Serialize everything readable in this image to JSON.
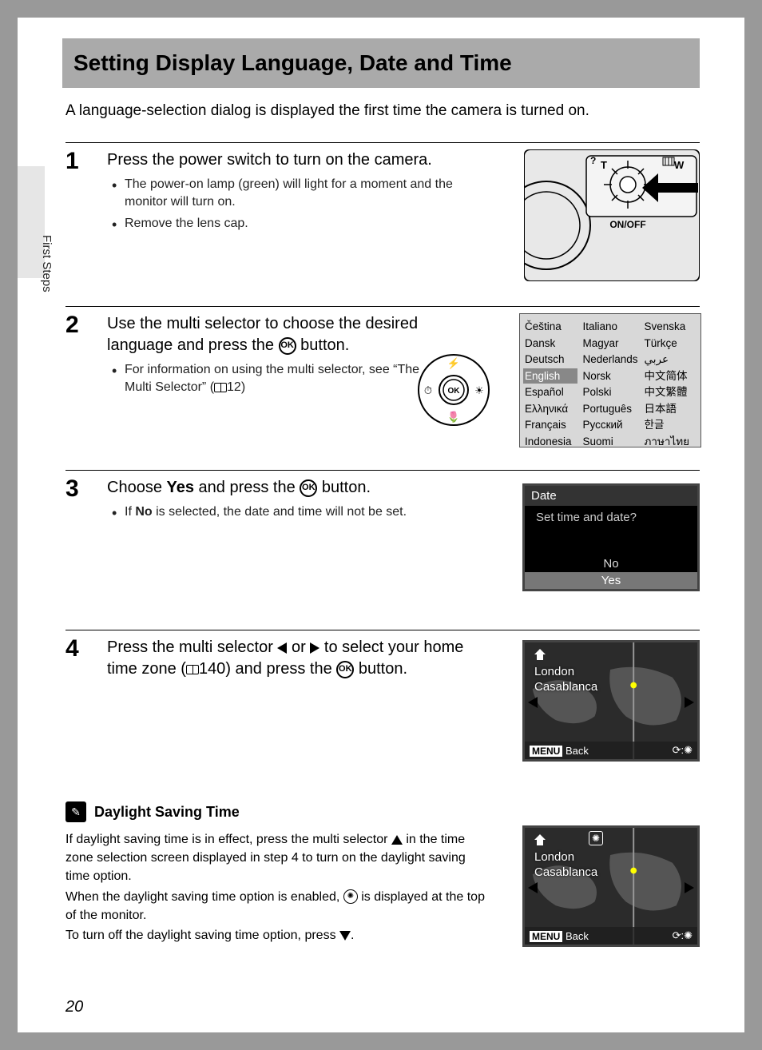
{
  "page": {
    "side_tab": "First Steps",
    "title": "Setting Display Language, Date and Time",
    "intro": "A language-selection dialog is displayed the first time the camera is turned on.",
    "page_number": "20"
  },
  "steps": {
    "s1": {
      "num": "1",
      "title": "Press the power switch to turn on the camera.",
      "b1": "The power-on lamp (green) will light for a moment and the monitor will turn on.",
      "b2": "Remove the lens cap."
    },
    "s2": {
      "num": "2",
      "title_a": "Use the multi selector to choose the desired language and press the ",
      "title_b": " button.",
      "b1_a": "For information on using the multi selector, see “The Multi Selector” (",
      "b1_ref": "12",
      "b1_b": ")"
    },
    "s3": {
      "num": "3",
      "title_a": "Choose ",
      "title_yes": "Yes",
      "title_b": " and press the ",
      "title_c": " button.",
      "b1_a": "If ",
      "b1_no": "No",
      "b1_b": " is selected, the date and time will not be set."
    },
    "s4": {
      "num": "4",
      "title_a": "Press the multi selector ",
      "title_b": " or ",
      "title_c": " to select your home time zone (",
      "title_ref": "140",
      "title_d": ") and press the ",
      "title_e": " button."
    }
  },
  "camera_labels": {
    "t": "T",
    "w": "W",
    "onoff": "ON/OFF",
    "help": "?"
  },
  "selector_labels": {
    "ok": "OK"
  },
  "languages": {
    "col1": [
      "Čeština",
      "Dansk",
      "Deutsch",
      "English",
      "Español",
      "Ελληνικά",
      "Français",
      "Indonesia"
    ],
    "col2": [
      "Italiano",
      "Magyar",
      "Nederlands",
      "Norsk",
      "Polski",
      "Português",
      "Русский",
      "Suomi"
    ],
    "col3": [
      "Svenska",
      "Türkçe",
      "عربي",
      "中文简体",
      "中文繁體",
      "日本語",
      "한글",
      "ภาษาไทย"
    ],
    "selected": "English"
  },
  "date_screen": {
    "title": "Date",
    "prompt": "Set time and date?",
    "opt_no": "No",
    "opt_yes": "Yes"
  },
  "tz_screen": {
    "city1": "London",
    "city2": "Casablanca",
    "menu": "MENU",
    "back": "Back"
  },
  "dst_note": {
    "title": "Daylight Saving Time",
    "p1_a": "If daylight saving time is in effect, press the multi selector ",
    "p1_b": " in the time zone selection screen displayed in step 4 to turn on the daylight saving time option.",
    "p2_a": "When the daylight saving time option is enabled, ",
    "p2_b": " is displayed at the top of the monitor.",
    "p3_a": "To turn off the daylight saving time option, press ",
    "p3_b": "."
  },
  "colors": {
    "page_bg": "#999999",
    "tab_bg": "#e6e6e6",
    "title_bar_bg": "#aaaaaa",
    "lcd_border": "#444444",
    "lcd_bg": "#000000",
    "lcd_sel": "#777777",
    "lang_bg": "#d8d8d8",
    "lang_sel": "#888888"
  }
}
